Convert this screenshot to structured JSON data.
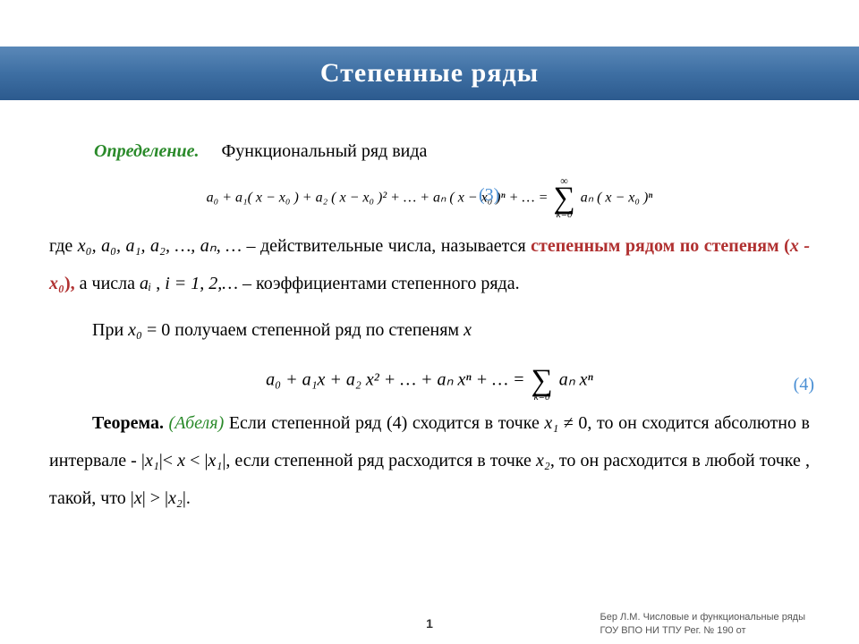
{
  "banner_title": "Степенные ряды",
  "def_label": "Определение.",
  "def_text": "Функциональный ряд вида",
  "eq1_lhs": "a₀ + a₁( x − x₀ ) + a₂ ( x − x₀ )² + … + aₙ ( x − x₀ )ⁿ + … = ",
  "eq1_sigma_top": "∞",
  "eq1_sigma_bot": "k=0",
  "eq1_rhs": "aₙ ( x − x₀ )ⁿ",
  "eq1_label": "(3)",
  "para1_a": " где ",
  "para1_vars": "x₀, a₀, a₁, a₂, …, aₙ, …",
  "para1_b": " – действительные числа, называется ",
  "para1_red1": "степенным рядом по степеням (",
  "para1_red1b": "x - x₀",
  "para1_red1c": "),",
  "para1_c": " а числа ",
  "para1_ai": "aᵢ",
  "para1_d": " , ",
  "para1_i": " i = 1, 2,…",
  "para1_e": " – коэффициентами степенного ряда.",
  "para2_a": "При ",
  "para2_x0": "x₀",
  "para2_b": " = 0  получаем степенной ряд по степеням ",
  "para2_x": "x",
  "eq2_lhs": "a₀ + a₁x + a₂ x² + … + aₙ xⁿ + … = ",
  "eq2_sigma_bot": "k=0",
  "eq2_rhs": "aₙ xⁿ",
  "eq2_label": "(4)",
  "thm_label": "Теорема.",
  "thm_name": "(Абеля)",
  "thm_a": " Если степенной ряд  (4)  сходится в точке ",
  "thm_x1": "x₁",
  "thm_b": " ≠ 0,  то он сходится абсолютно в интервале    - |",
  "thm_x1b": "x₁",
  "thm_c": "|< ",
  "thm_xx": "x",
  "thm_d": " < |",
  "thm_x1c": "x₁",
  "thm_e": "|, если  степенной ряд расходится в точке ",
  "thm_x2": "x₂",
  "thm_f": ", то он расходится в любой точке , такой, что |",
  "thm_xg": "x",
  "thm_g": "| > |",
  "thm_x2b": "x₂",
  "thm_h": "|.",
  "page_number": "1",
  "footer_line1": "Бер Л.М. Числовые и функциональные ряды",
  "footer_line2": "ГОУ ВПО НИ ТПУ Рег. № 190 от"
}
